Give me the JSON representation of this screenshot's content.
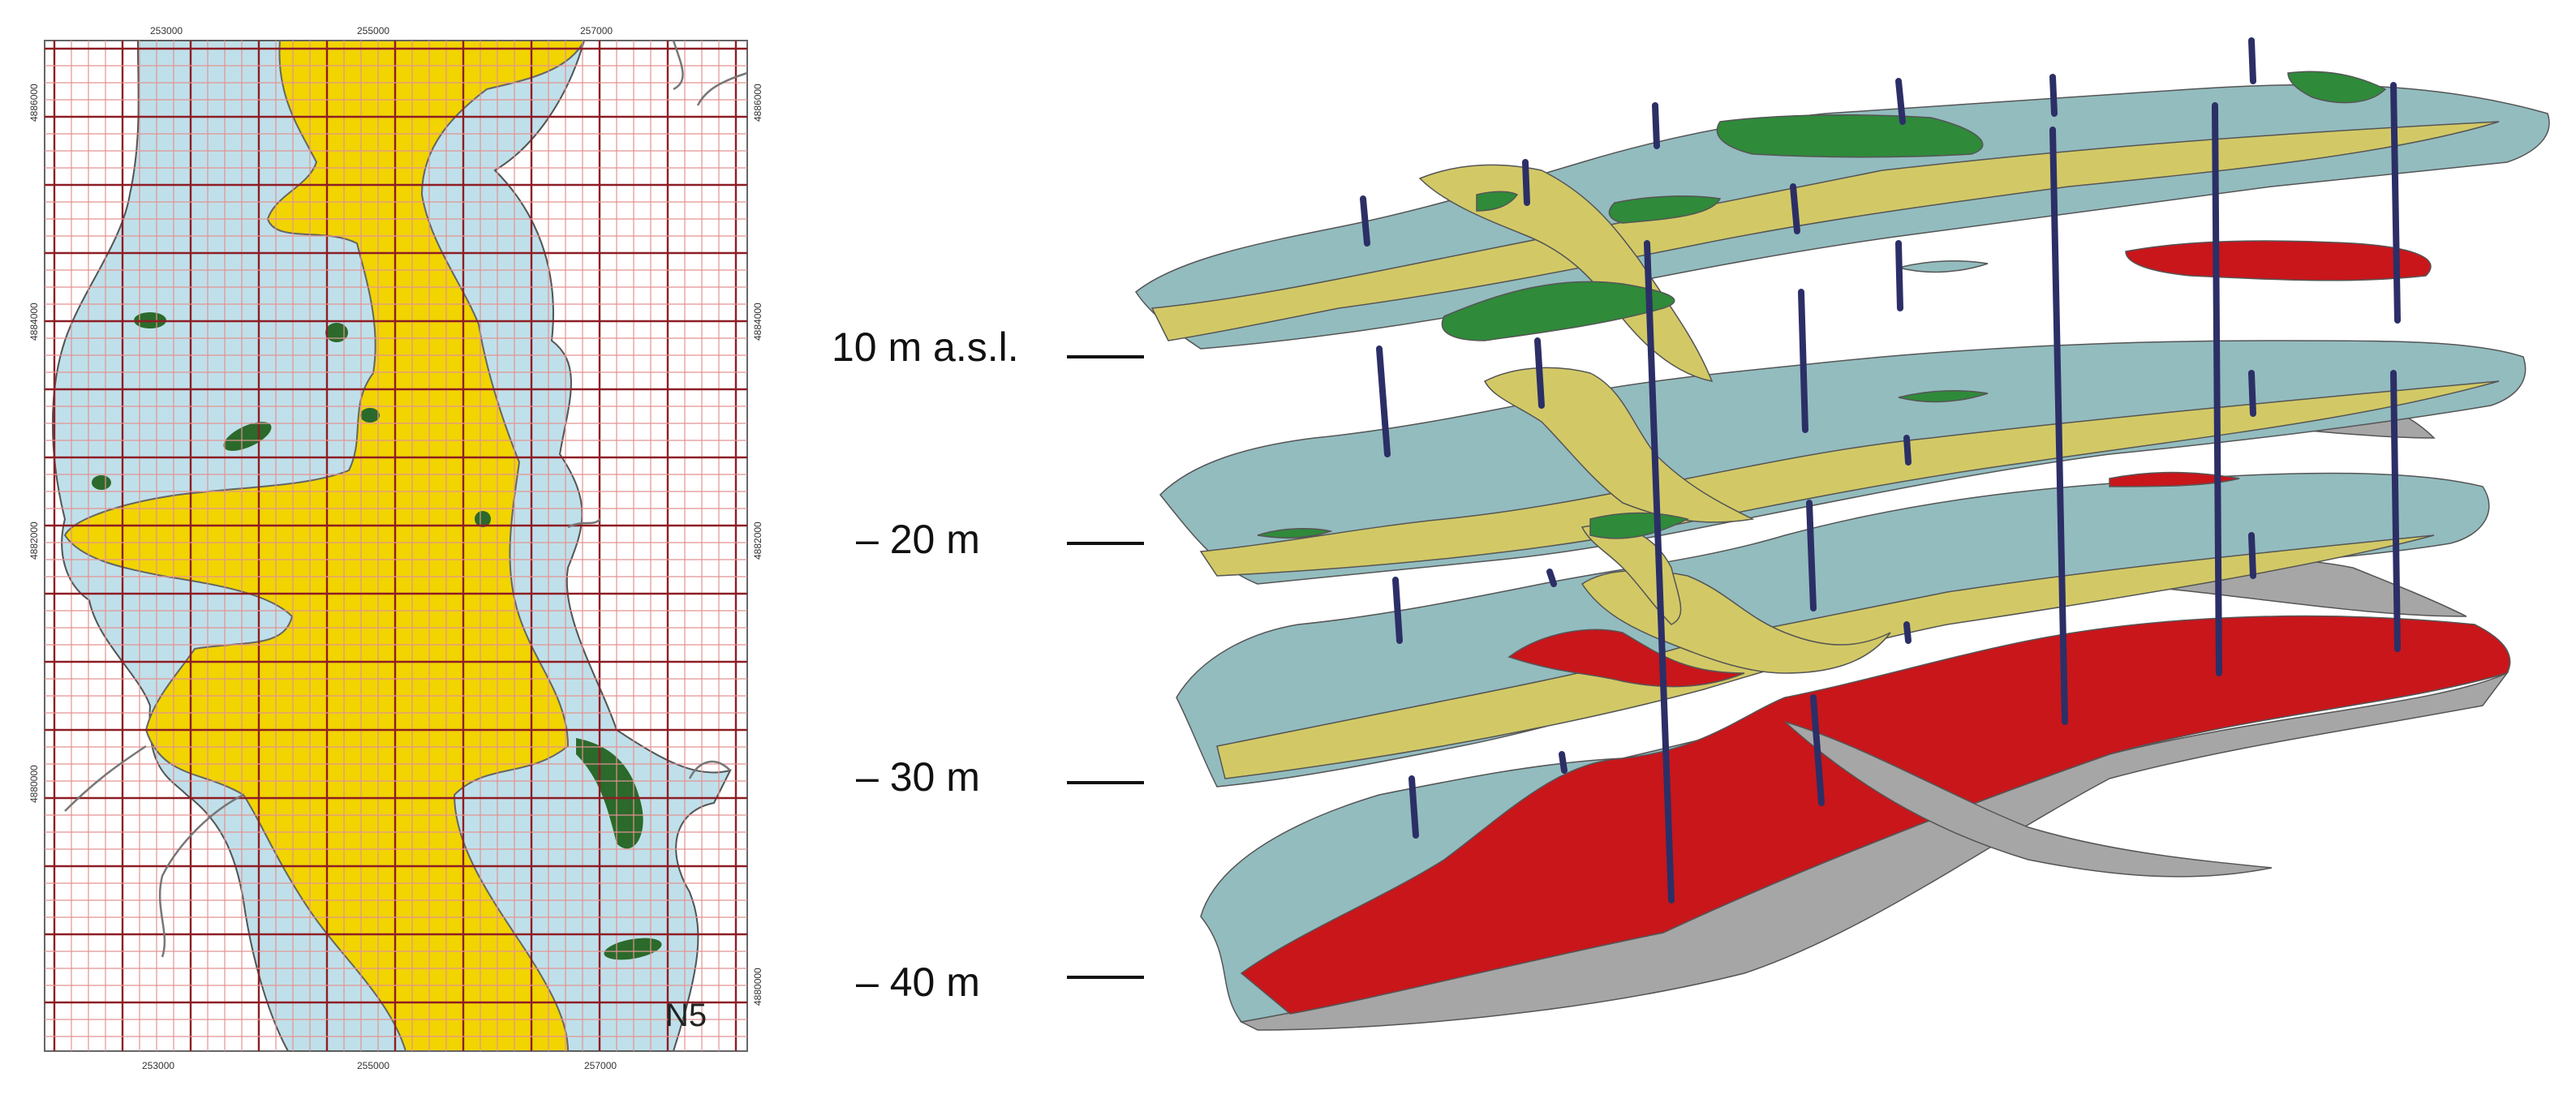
{
  "colors": {
    "background": "#ffffff",
    "sand_blue": "#bfe0ea",
    "clay_gray_blue": "#93bcbf",
    "fine_sand_yellow": "#f1d400",
    "layer_yellow": "#d2c966",
    "lens_green": "#2f8a3a",
    "dark_green": "#2b6a2b",
    "gravel_red": "#c8161b",
    "base_gray": "#a6a6a6",
    "borehole_navy": "#2c2f66",
    "grid_dark_red": "#8e1d24",
    "grid_light_red": "#e39292"
  },
  "map": {
    "tag": "N5",
    "top_tick_labels": [
      "253000",
      "255000",
      "257000"
    ],
    "bottom_tick_labels": [
      "253000",
      "255000",
      "257000"
    ],
    "left_tick_labels": [
      "4886000",
      "4884000",
      "4882000",
      "4880000"
    ],
    "right_tick_labels": [
      "4886000",
      "4884000",
      "4882000",
      "4880000"
    ]
  },
  "depth_scale": {
    "levels": [
      {
        "label": "10 m a.s.l.",
        "elevation_m": 10
      },
      {
        "label": "– 20 m",
        "elevation_m": -20
      },
      {
        "label": "– 30 m",
        "elevation_m": -30
      },
      {
        "label": "– 40 m",
        "elevation_m": -40
      }
    ]
  },
  "block_model": {
    "slice_count": 4,
    "slices": [
      "slice-1",
      "slice-2",
      "slice-3",
      "slice-4"
    ]
  }
}
